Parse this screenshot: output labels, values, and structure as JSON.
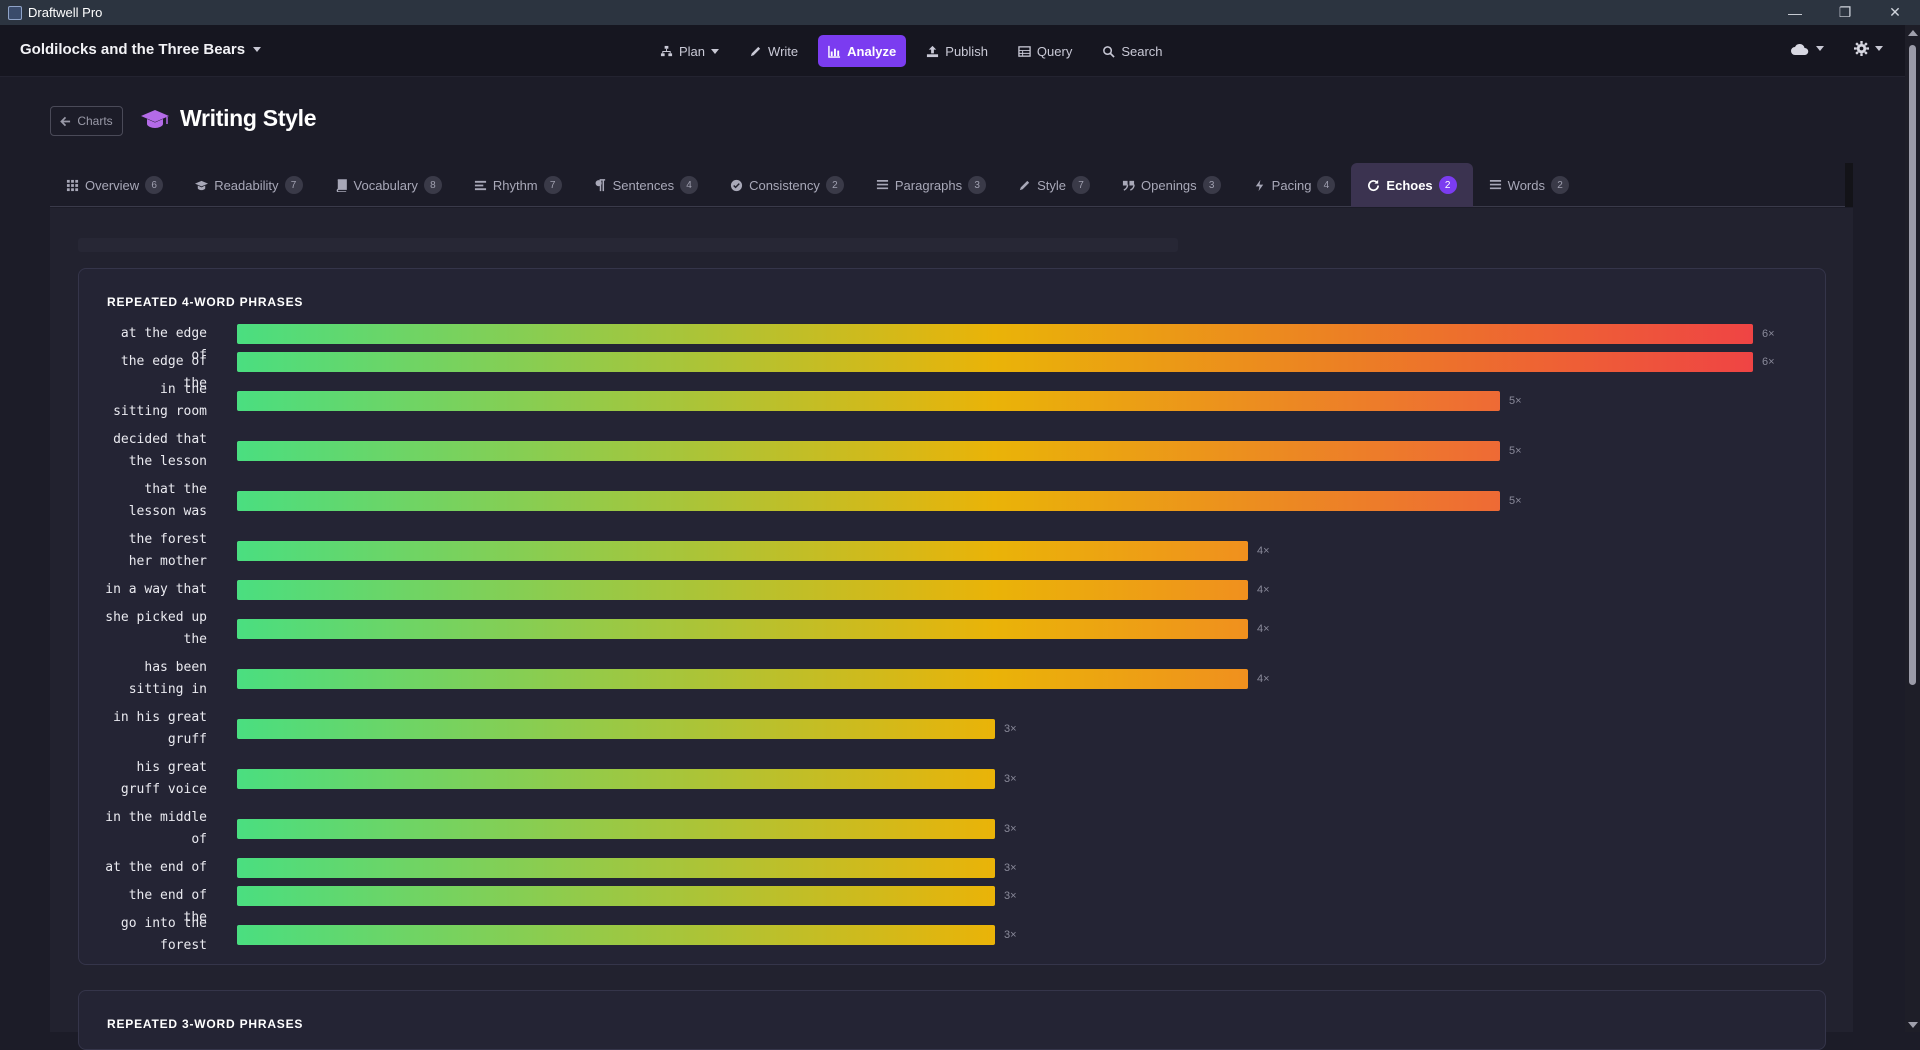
{
  "window": {
    "app_title": "Draftwell Pro",
    "minimize": "—",
    "maximize": "❐",
    "close": "✕"
  },
  "header": {
    "project_title": "Goldilocks and the Three Bears",
    "nav": [
      {
        "label": "Plan",
        "icon": "sitemap-icon"
      },
      {
        "label": "Write",
        "icon": "pencil-icon"
      },
      {
        "label": "Analyze",
        "icon": "bar-chart-icon",
        "active": true
      },
      {
        "label": "Publish",
        "icon": "upload-icon"
      },
      {
        "label": "Query",
        "icon": "table-icon"
      },
      {
        "label": "Search",
        "icon": "search-icon"
      }
    ],
    "right_icons": [
      "cloud-icon",
      "gear-icon"
    ]
  },
  "page": {
    "back_label": "Charts",
    "title": "Writing Style",
    "title_icon": "graduation-cap-icon"
  },
  "tabs": [
    {
      "label": "Overview",
      "count": "6",
      "icon": "grid-icon"
    },
    {
      "label": "Readability",
      "count": "7",
      "icon": "graduation-cap-icon"
    },
    {
      "label": "Vocabulary",
      "count": "8",
      "icon": "book-icon"
    },
    {
      "label": "Rhythm",
      "count": "7",
      "icon": "lines-icon"
    },
    {
      "label": "Sentences",
      "count": "4",
      "icon": "pilcrow-icon"
    },
    {
      "label": "Consistency",
      "count": "2",
      "icon": "check-circle-icon"
    },
    {
      "label": "Paragraphs",
      "count": "3",
      "icon": "list-icon"
    },
    {
      "label": "Style",
      "count": "7",
      "icon": "pen-icon"
    },
    {
      "label": "Openings",
      "count": "3",
      "icon": "quote-icon"
    },
    {
      "label": "Pacing",
      "count": "4",
      "icon": "bolt-icon"
    },
    {
      "label": "Echoes",
      "count": "2",
      "icon": "refresh-icon",
      "active": true
    },
    {
      "label": "Words",
      "count": "2",
      "icon": "list-icon"
    }
  ],
  "colors": {
    "accent": "#7b3cf0",
    "bar_start": "#4ade80",
    "bar_mid": "#eab308",
    "bar_end": "#ef4444"
  },
  "cards": [
    {
      "title": "REPEATED 4-WORD PHRASES"
    },
    {
      "title": "REPEATED 3-WORD PHRASES"
    }
  ],
  "chart_data": {
    "type": "bar",
    "orientation": "horizontal",
    "title": "REPEATED 4-WORD PHRASES",
    "categories": [
      "at the edge of",
      "the edge of the",
      "in the sitting room",
      "decided that the lesson",
      "that the lesson was",
      "the forest her mother",
      "in a way that",
      "she picked up the",
      "has been sitting in",
      "in his great gruff",
      "his great gruff voice",
      "in the middle of",
      "at the end of",
      "the end of the",
      "go into the forest"
    ],
    "values": [
      6,
      6,
      5,
      5,
      5,
      4,
      4,
      4,
      4,
      3,
      3,
      3,
      3,
      3,
      3
    ],
    "value_labels": [
      "6×",
      "6×",
      "5×",
      "5×",
      "5×",
      "4×",
      "4×",
      "4×",
      "4×",
      "3×",
      "3×",
      "3×",
      "3×",
      "3×",
      "3×"
    ],
    "xlim": [
      0,
      6
    ]
  }
}
